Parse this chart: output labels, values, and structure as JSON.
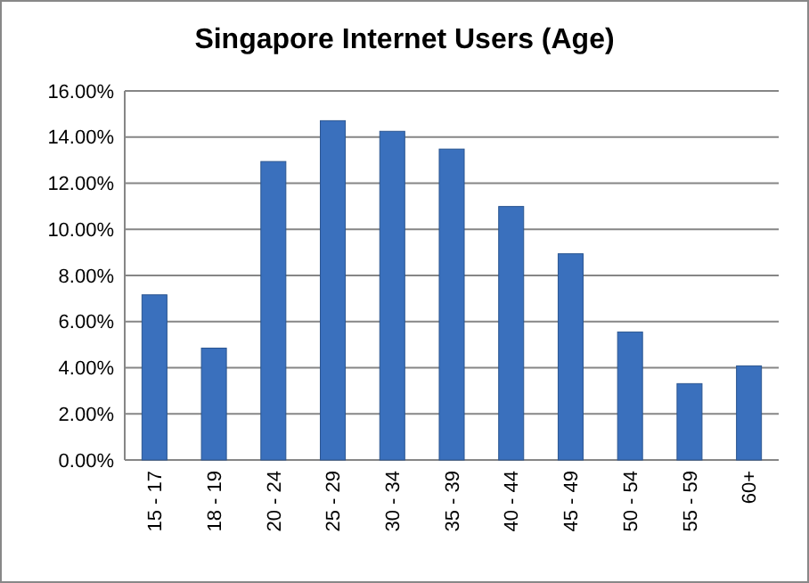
{
  "chart_data": {
    "type": "bar",
    "title": "Singapore Internet Users (Age)",
    "categories": [
      "15 - 17",
      "18 - 19",
      "20 - 24",
      "25 - 29",
      "30 - 34",
      "35 - 39",
      "40 - 44",
      "45 - 49",
      "50 - 54",
      "55 - 59",
      "60+"
    ],
    "values": [
      7.16,
      4.85,
      12.94,
      14.71,
      14.25,
      13.48,
      10.99,
      8.94,
      5.55,
      3.31,
      4.08
    ],
    "color": "#3a70bd",
    "ylim": [
      0,
      16
    ],
    "yticks": [
      {
        "value": 0,
        "label": "0.00%"
      },
      {
        "value": 2,
        "label": "2.00%"
      },
      {
        "value": 4,
        "label": "4.00%"
      },
      {
        "value": 6,
        "label": "6.00%"
      },
      {
        "value": 8,
        "label": "8.00%"
      },
      {
        "value": 10,
        "label": "10.00%"
      },
      {
        "value": 12,
        "label": "12.00%"
      },
      {
        "value": 14,
        "label": "14.00%"
      },
      {
        "value": 16,
        "label": "16.00%"
      }
    ],
    "grid": "y"
  }
}
